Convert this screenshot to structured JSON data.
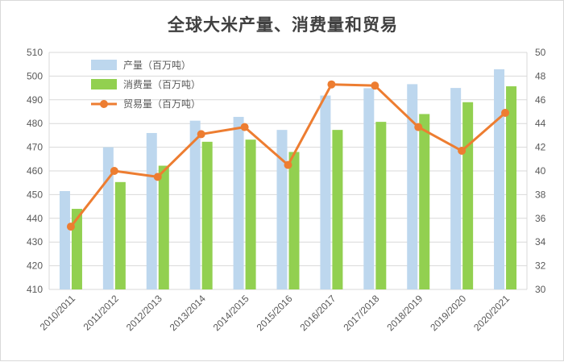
{
  "chart_data": {
    "type": "bar",
    "title": "全球大米产量、消费量和贸易",
    "categories": [
      "2010/2011",
      "2011/2012",
      "2012/2013",
      "2013/2014",
      "2014/2015",
      "2015/2016",
      "2016/2017",
      "2017/2018",
      "2018/2019",
      "2019/2020",
      "2020/2021"
    ],
    "series": [
      {
        "name": "产量（百万吨）",
        "kind": "bar",
        "axis": "left",
        "color": "#bdd7ee",
        "values": [
          451.5,
          470,
          476,
          481.2,
          482.8,
          477.3,
          491.8,
          494.9,
          496.6,
          495,
          502.9
        ]
      },
      {
        "name": "消费量（百万吨）",
        "kind": "bar",
        "axis": "left",
        "color": "#92d050",
        "values": [
          444,
          455.3,
          462.2,
          472.3,
          473.2,
          468,
          477.3,
          480.7,
          484,
          489,
          495.7
        ]
      },
      {
        "name": "贸易量（百万吨）",
        "kind": "line",
        "axis": "right",
        "color": "#ed7d31",
        "values": [
          35.3,
          40,
          39.5,
          43.1,
          43.7,
          40.5,
          47.3,
          47.2,
          43.7,
          41.7,
          44.9
        ]
      }
    ],
    "y_left": {
      "min": 410,
      "max": 510,
      "ticks": [
        410,
        420,
        430,
        440,
        450,
        460,
        470,
        480,
        490,
        500,
        510
      ]
    },
    "y_right": {
      "min": 30,
      "max": 50,
      "ticks": [
        30,
        32,
        34,
        36,
        38,
        40,
        42,
        44,
        46,
        48,
        50
      ]
    },
    "grid": true,
    "legend_position": "top-left"
  }
}
